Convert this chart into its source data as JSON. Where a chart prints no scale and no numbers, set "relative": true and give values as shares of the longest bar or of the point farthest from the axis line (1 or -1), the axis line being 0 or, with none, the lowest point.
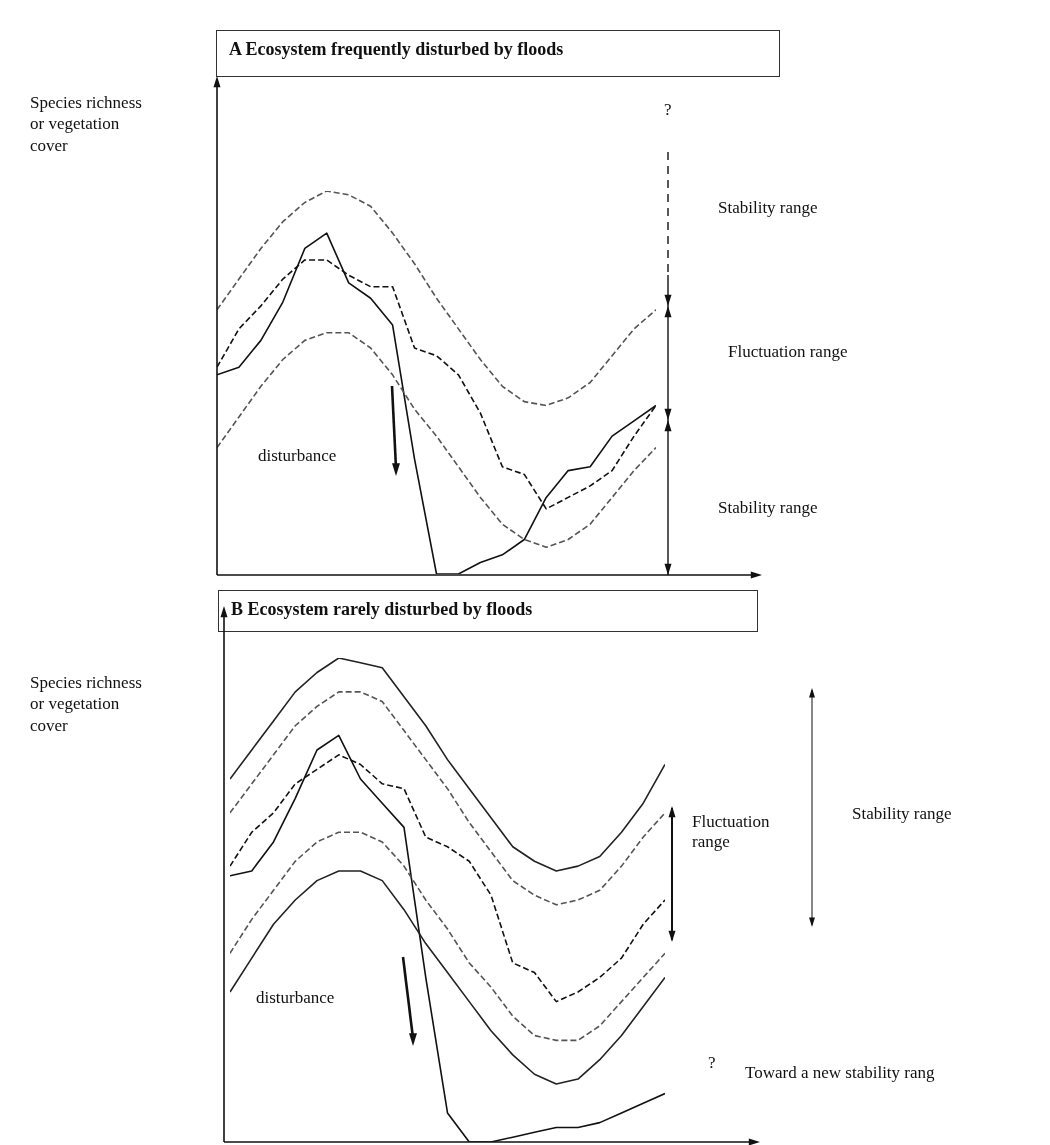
{
  "chart_data": [
    {
      "type": "line",
      "title": "A Ecosystem frequently disturbed by floods",
      "ylabel": "Species richness or vegetation cover",
      "relative": true,
      "marker": "none",
      "categories": [
        null,
        null,
        null,
        null,
        null,
        null,
        null,
        null,
        null,
        null,
        null,
        null,
        null,
        null,
        null,
        null,
        null,
        null,
        null,
        null,
        null
      ],
      "series": [
        {
          "color": "#555555",
          "line_style": "dashed",
          "values": [
            0.69,
            0.77,
            0.85,
            0.92,
            0.97,
            1.0,
            0.99,
            0.96,
            0.89,
            0.81,
            0.72,
            0.64,
            0.56,
            0.49,
            0.45,
            0.44,
            0.46,
            0.5,
            0.57,
            0.64,
            0.69
          ]
        },
        {
          "color": "#555555",
          "line_style": "dashed",
          "values": [
            0.33,
            0.41,
            0.49,
            0.56,
            0.61,
            0.63,
            0.63,
            0.59,
            0.52,
            0.43,
            0.36,
            0.28,
            0.2,
            0.13,
            0.09,
            0.07,
            0.09,
            0.13,
            0.2,
            0.27,
            0.33
          ]
        },
        {
          "color": "#111111",
          "line_style": "solid",
          "values": [
            0.52,
            0.54,
            0.61,
            0.71,
            0.85,
            0.89,
            0.76,
            0.72,
            0.65,
            0.3,
            0,
            0,
            0.03,
            0.05,
            0.09,
            0.2,
            0.27,
            0.28,
            0.36,
            0.4,
            0.44
          ]
        },
        {
          "color": "#111111",
          "line_style": "dashed",
          "values": [
            0.54,
            0.64,
            0.7,
            0.77,
            0.82,
            0.82,
            0.78,
            0.75,
            0.75,
            0.59,
            0.57,
            0.52,
            0.42,
            0.28,
            0.26,
            0.17,
            0.2,
            0.23,
            0.27,
            0.36,
            0.44
          ]
        }
      ],
      "annotations": [
        "disturbance",
        "?",
        "Stability range",
        "Fluctuation range",
        "Stability range"
      ]
    },
    {
      "type": "line",
      "title": "B Ecosystem rarely disturbed by floods",
      "ylabel": "Species richness or vegetation cover",
      "relative": true,
      "marker": "none",
      "categories": [
        null,
        null,
        null,
        null,
        null,
        null,
        null,
        null,
        null,
        null,
        null,
        null,
        null,
        null,
        null,
        null,
        null,
        null,
        null,
        null,
        null
      ],
      "series": [
        {
          "color": "#222222",
          "line_style": "solid",
          "values": [
            0.75,
            0.81,
            0.87,
            0.93,
            0.97,
            1.0,
            0.99,
            0.98,
            0.92,
            0.86,
            0.79,
            0.73,
            0.67,
            0.61,
            0.58,
            0.56,
            0.57,
            0.59,
            0.64,
            0.7,
            0.78
          ]
        },
        {
          "color": "#555555",
          "line_style": "dashed",
          "values": [
            0.68,
            0.74,
            0.8,
            0.86,
            0.9,
            0.93,
            0.93,
            0.91,
            0.85,
            0.79,
            0.73,
            0.66,
            0.6,
            0.54,
            0.51,
            0.49,
            0.5,
            0.52,
            0.57,
            0.63,
            0.68
          ]
        },
        {
          "color": "#555555",
          "line_style": "dashed",
          "values": [
            0.39,
            0.46,
            0.52,
            0.58,
            0.62,
            0.64,
            0.64,
            0.62,
            0.57,
            0.5,
            0.44,
            0.37,
            0.32,
            0.26,
            0.22,
            0.21,
            0.21,
            0.24,
            0.29,
            0.34,
            0.39
          ]
        },
        {
          "color": "#222222",
          "line_style": "solid",
          "values": [
            0.31,
            0.38,
            0.45,
            0.5,
            0.54,
            0.56,
            0.56,
            0.54,
            0.48,
            0.41,
            0.35,
            0.29,
            0.23,
            0.18,
            0.14,
            0.12,
            0.13,
            0.17,
            0.22,
            0.28,
            0.34
          ]
        },
        {
          "color": "#111111",
          "line_style": "solid",
          "values": [
            0.55,
            0.56,
            0.62,
            0.71,
            0.81,
            0.84,
            0.75,
            0.7,
            0.65,
            0.34,
            0.06,
            0,
            0,
            0.01,
            0.02,
            0.03,
            0.03,
            0.04,
            0.06,
            0.08,
            0.1
          ]
        },
        {
          "color": "#111111",
          "line_style": "dashed",
          "values": [
            0.57,
            0.64,
            0.68,
            0.74,
            0.77,
            0.8,
            0.78,
            0.74,
            0.73,
            0.63,
            0.61,
            0.58,
            0.51,
            0.37,
            0.35,
            0.29,
            0.31,
            0.34,
            0.38,
            0.45,
            0.5
          ]
        }
      ],
      "annotations": [
        "disturbance",
        "Fluctuation range",
        "Stability range",
        "?",
        "Toward a new stability  rang"
      ]
    }
  ]
}
